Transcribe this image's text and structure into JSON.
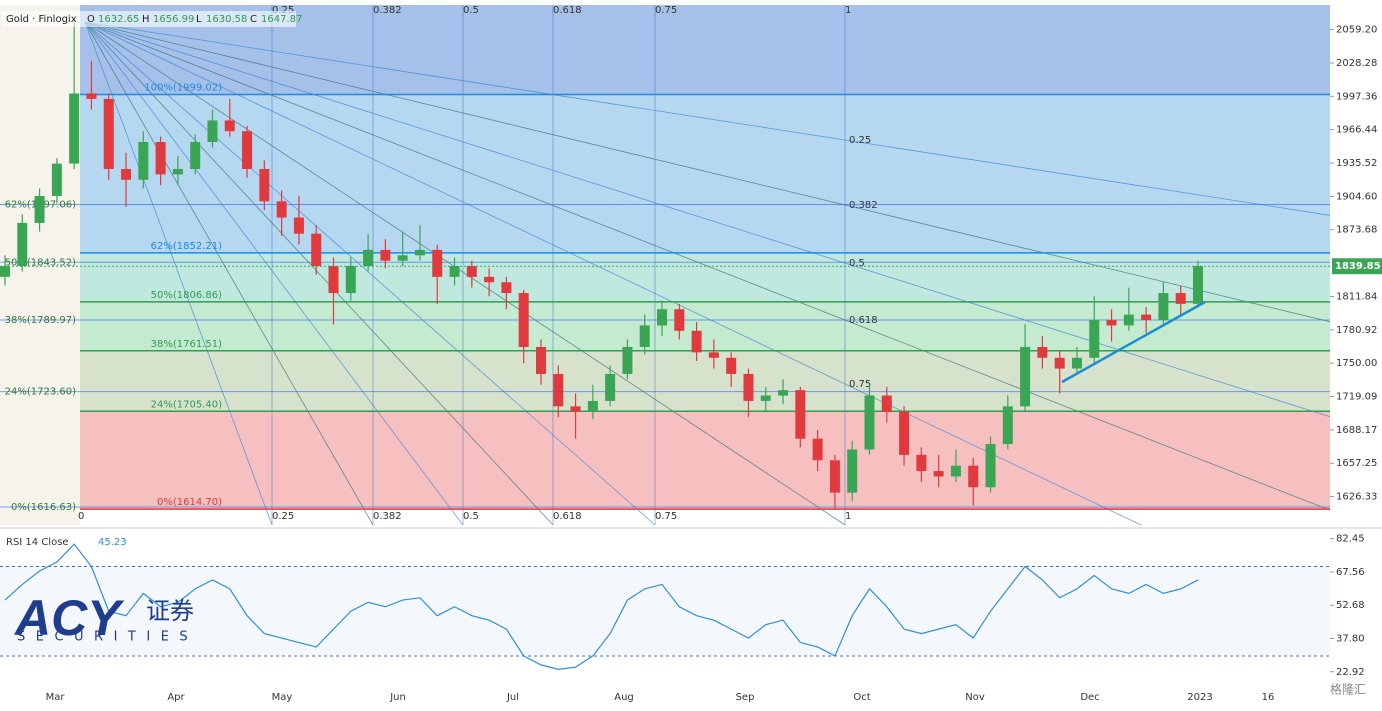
{
  "header": {
    "symbol": "Gold · Finlogix",
    "o_label": "O",
    "o": "1632.65",
    "h_label": "H",
    "h": "1656.99",
    "l_label": "L",
    "l": "1630.58",
    "c_label": "C",
    "c": "1647.87"
  },
  "chart_data": {
    "type": "candlestick",
    "ylim": [
      1600,
      2082
    ],
    "yticks": [
      {
        "value": 2059.2,
        "label": "2059.20"
      },
      2028.28,
      1997.36,
      1966.44,
      1935.52,
      {
        "value": 1904.6,
        "label": "1904.60"
      },
      1873.68,
      1811.84,
      1780.92,
      {
        "value": 1750,
        "label": "1750.00"
      },
      1719.09,
      1688.17,
      1657.25,
      1626.33
    ],
    "last_price": 1839.85,
    "up_color": "#3aa655",
    "down_color": "#e0393e",
    "x_labels": [
      "Mar",
      "Apr",
      "May",
      "Jun",
      "Jul",
      "Aug",
      "Sep",
      "Oct",
      "Nov",
      "Dec",
      "2023",
      "16"
    ],
    "candles": [
      [
        1830,
        1850,
        1822,
        1840
      ],
      [
        1840,
        1888,
        1835,
        1880
      ],
      [
        1880,
        1912,
        1872,
        1905
      ],
      [
        1905,
        1940,
        1898,
        1935
      ],
      [
        1935,
        2070,
        1930,
        2000
      ],
      [
        2000,
        2030,
        1985,
        1995
      ],
      [
        1995,
        2000,
        1920,
        1930
      ],
      [
        1930,
        1945,
        1895,
        1920
      ],
      [
        1920,
        1965,
        1912,
        1955
      ],
      [
        1955,
        1960,
        1915,
        1925
      ],
      [
        1925,
        1942,
        1915,
        1930
      ],
      [
        1930,
        1962,
        1925,
        1955
      ],
      [
        1955,
        1985,
        1950,
        1975
      ],
      [
        1975,
        1995,
        1960,
        1965
      ],
      [
        1965,
        1970,
        1922,
        1930
      ],
      [
        1930,
        1938,
        1892,
        1900
      ],
      [
        1900,
        1910,
        1868,
        1885
      ],
      [
        1885,
        1905,
        1860,
        1870
      ],
      [
        1870,
        1878,
        1832,
        1840
      ],
      [
        1840,
        1848,
        1786,
        1815
      ],
      [
        1815,
        1848,
        1808,
        1840
      ],
      [
        1840,
        1870,
        1835,
        1855
      ],
      [
        1855,
        1865,
        1838,
        1845
      ],
      [
        1845,
        1872,
        1840,
        1850
      ],
      [
        1850,
        1878,
        1845,
        1855
      ],
      [
        1855,
        1860,
        1805,
        1830
      ],
      [
        1830,
        1848,
        1822,
        1840
      ],
      [
        1840,
        1845,
        1820,
        1830
      ],
      [
        1830,
        1838,
        1812,
        1825
      ],
      [
        1825,
        1830,
        1800,
        1815
      ],
      [
        1815,
        1818,
        1750,
        1765
      ],
      [
        1765,
        1772,
        1730,
        1740
      ],
      [
        1740,
        1748,
        1700,
        1710
      ],
      [
        1710,
        1722,
        1680,
        1705
      ],
      [
        1705,
        1730,
        1698,
        1715
      ],
      [
        1715,
        1748,
        1710,
        1740
      ],
      [
        1740,
        1772,
        1735,
        1765
      ],
      [
        1765,
        1795,
        1758,
        1785
      ],
      [
        1785,
        1808,
        1775,
        1800
      ],
      [
        1800,
        1805,
        1772,
        1780
      ],
      [
        1780,
        1788,
        1752,
        1760
      ],
      [
        1760,
        1772,
        1745,
        1755
      ],
      [
        1755,
        1760,
        1728,
        1740
      ],
      [
        1740,
        1745,
        1700,
        1715
      ],
      [
        1715,
        1728,
        1706,
        1720
      ],
      [
        1720,
        1735,
        1712,
        1725
      ],
      [
        1725,
        1728,
        1672,
        1680
      ],
      [
        1680,
        1688,
        1650,
        1660
      ],
      [
        1660,
        1665,
        1615,
        1630
      ],
      [
        1630,
        1678,
        1622,
        1670
      ],
      [
        1670,
        1730,
        1665,
        1720
      ],
      [
        1720,
        1728,
        1695,
        1705
      ],
      [
        1705,
        1710,
        1655,
        1665
      ],
      [
        1665,
        1672,
        1640,
        1650
      ],
      [
        1650,
        1665,
        1635,
        1645
      ],
      [
        1645,
        1670,
        1640,
        1655
      ],
      [
        1655,
        1662,
        1618,
        1635
      ],
      [
        1635,
        1682,
        1630,
        1675
      ],
      [
        1675,
        1720,
        1670,
        1710
      ],
      [
        1710,
        1786,
        1705,
        1765
      ],
      [
        1765,
        1775,
        1745,
        1755
      ],
      [
        1755,
        1762,
        1722,
        1745
      ],
      [
        1745,
        1765,
        1740,
        1755
      ],
      [
        1755,
        1812,
        1750,
        1790
      ],
      [
        1790,
        1800,
        1770,
        1785
      ],
      [
        1785,
        1820,
        1780,
        1795
      ],
      [
        1795,
        1802,
        1778,
        1790
      ],
      [
        1790,
        1825,
        1785,
        1815
      ],
      [
        1815,
        1822,
        1795,
        1805
      ],
      [
        1805,
        1845,
        1802,
        1840
      ]
    ],
    "fib_right": [
      {
        "value": 1614.7,
        "label": "0%(1614.70)",
        "color": "rgba(235,90,90,0.38)"
      },
      {
        "value": 1705.4,
        "label": "24%(1705.40)",
        "color": "rgba(150,180,120,0.38)"
      },
      {
        "value": 1761.51,
        "label": "38%(1761.51)",
        "color": "rgba(100,200,130,0.38)"
      },
      {
        "value": 1806.86,
        "label": "50%(1806.86)",
        "color": "rgba(90,195,170,0.38)"
      },
      {
        "value": 1852.21,
        "label": "62%(1852.21)",
        "color": "rgba(80,160,220,0.42)"
      },
      {
        "value": 1999.02,
        "label": "100%(1999.02)",
        "color": "rgba(70,125,210,0.48)"
      }
    ],
    "fib_left": [
      {
        "value": 1616.63,
        "label": "0%(1616.63)"
      },
      {
        "value": 1723.6,
        "label": "24%(1723.60)"
      },
      {
        "value": 1789.97,
        "label": "38%(1789.97)"
      },
      {
        "value": 1843.52,
        "label": "50%(1843.52)"
      },
      {
        "value": 1897.06,
        "label": "62%(1897.06)"
      }
    ],
    "fan_labels": [
      "0",
      "0.25",
      "0.382",
      "0.5",
      "0.618",
      "0.75",
      "1"
    ],
    "rsi": {
      "title": "RSI 14 Close",
      "last": "45.23",
      "color": "#2f8ee0",
      "ylim": [
        17,
        85
      ],
      "yticks": [
        82.45,
        67.56,
        52.68,
        {
          "value": 37.8,
          "label": "37.80"
        },
        22.92
      ],
      "bands": [
        70,
        30
      ],
      "values": [
        55,
        62,
        68,
        72,
        80,
        70,
        50,
        48,
        58,
        52,
        54,
        60,
        64,
        60,
        48,
        40,
        38,
        36,
        34,
        42,
        50,
        54,
        52,
        55,
        56,
        48,
        52,
        48,
        46,
        42,
        30,
        26,
        24,
        25,
        30,
        40,
        55,
        60,
        62,
        52,
        48,
        46,
        42,
        38,
        44,
        46,
        36,
        34,
        30,
        48,
        60,
        52,
        42,
        40,
        42,
        44,
        38,
        50,
        60,
        70,
        64,
        56,
        60,
        66,
        60,
        58,
        62,
        58,
        60,
        64
      ]
    }
  },
  "watermark": {
    "brand": "ACY",
    "cn": "证券",
    "sub": "SECURITIES",
    "corner": "格隆汇"
  }
}
